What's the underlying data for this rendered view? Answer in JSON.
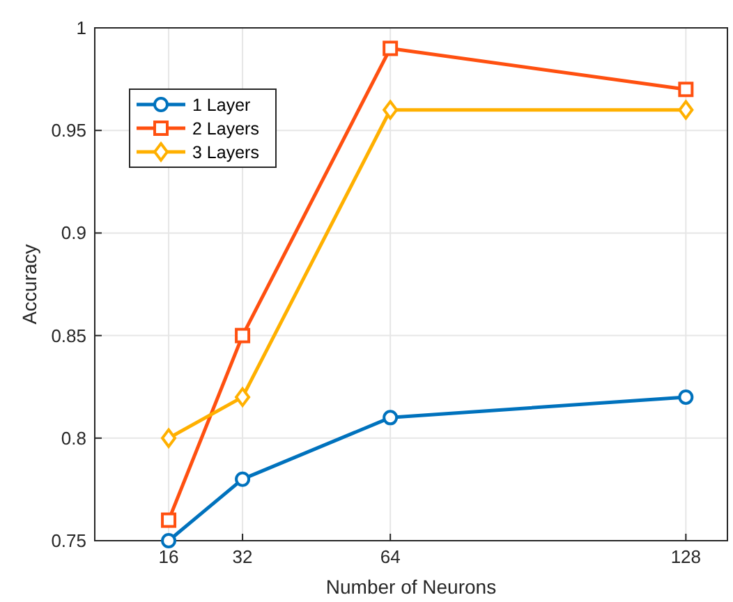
{
  "chart_data": {
    "type": "line",
    "xlabel": "Number of Neurons",
    "ylabel": "Accuracy",
    "x": [
      16,
      32,
      64,
      128
    ],
    "series": [
      {
        "name": "1 Layer",
        "color": "#0072bd",
        "values": [
          0.75,
          0.78,
          0.81,
          0.82
        ],
        "marker": "circle"
      },
      {
        "name": "2 Layers",
        "color": "#ff5010",
        "values": [
          0.76,
          0.85,
          0.99,
          0.97
        ],
        "marker": "square"
      },
      {
        "name": "3 Layers",
        "color": "#ffb000",
        "values": [
          0.8,
          0.82,
          0.96,
          0.96
        ],
        "marker": "diamond"
      }
    ],
    "xlim": [
      0,
      137
    ],
    "xticks": [
      16,
      32,
      64,
      128
    ],
    "ylim": [
      0.75,
      1
    ],
    "yticks": [
      0.75,
      0.8,
      0.85,
      0.9,
      0.95,
      1
    ],
    "grid": true,
    "legend": "top left",
    "line_style": "solid"
  }
}
